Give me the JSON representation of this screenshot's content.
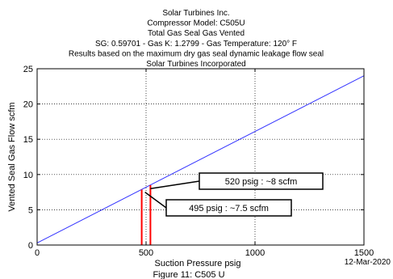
{
  "chart_data": {
    "type": "line",
    "title_lines": [
      "Solar Turbines Inc.",
      "Compressor Model: C505U",
      "Total Gas Seal Gas Vented",
      "SG: 0.59701 - Gas K: 1.2799 - Gas Temperature: 120° F",
      "Results based on the maximum dry gas seal dynamic leakage flow seal",
      "Solar Turbines Incorporated"
    ],
    "xlabel": "Suction Pressure psig",
    "ylabel": "Vented Seal Gas Flow scfm",
    "xlim": [
      0,
      1500
    ],
    "ylim": [
      0,
      25
    ],
    "xticks": [
      0,
      500,
      1000,
      1500
    ],
    "yticks": [
      0,
      5,
      10,
      15,
      20,
      25
    ],
    "grid": true,
    "series": [
      {
        "x": [
          0,
          1500
        ],
        "y": [
          0.3,
          24.0
        ],
        "color": "#3333ff"
      }
    ],
    "vlines": [
      {
        "x": 480,
        "y": 7.85,
        "color": "#ff0000"
      },
      {
        "x": 520,
        "y": 8.5,
        "color": "#ff0000"
      }
    ],
    "annotations": [
      {
        "text": "520 psig : ~8 scfm",
        "x": 520,
        "y": 8.0
      },
      {
        "text": "495 psig : ~7.5 scfm",
        "x": 495,
        "y": 7.5
      }
    ],
    "date": "12-Mar-2020",
    "caption": "Figure 11: C505 U"
  }
}
